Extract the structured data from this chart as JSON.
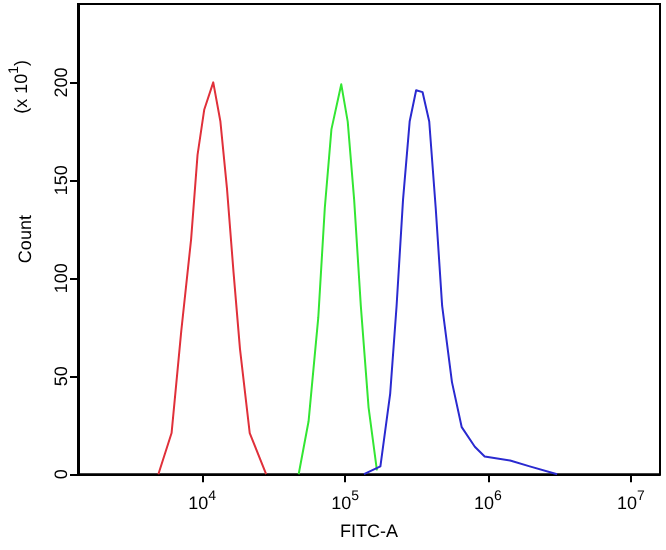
{
  "chart_data": {
    "type": "line",
    "xlabel": "FITC-A",
    "ylabel": "Count",
    "annotations": [
      "(x 10$^{1}$)"
    ],
    "log": "x",
    "grid": false,
    "marker": "none",
    "line_style": "solid",
    "xlim": [
      1350,
      16000000
    ],
    "xticks": [
      {
        "value": 10000,
        "label": "10$^{4}$"
      },
      {
        "value": 100000,
        "label": "10$^{5}$"
      },
      {
        "value": 1000000,
        "label": "10$^{6}$"
      },
      {
        "value": 10000000,
        "label": "10$^{7}$"
      }
    ],
    "ylim": [
      0,
      240
    ],
    "yticks": [
      0,
      50,
      100,
      150,
      200
    ],
    "series": [
      {
        "color": "#e0303a",
        "x": [
          4930,
          6100,
          7130,
          8360,
          9270,
          10320,
          11940,
          13400,
          14890,
          16560,
          18370,
          21500,
          28000
        ],
        "values": [
          0,
          21,
          73,
          120,
          163,
          186,
          200,
          180,
          146,
          103,
          64,
          21,
          0
        ]
      },
      {
        "color": "#33e633",
        "x": [
          47300,
          55500,
          64900,
          72100,
          80200,
          94000,
          104300,
          115700,
          128800,
          146000,
          167000
        ],
        "values": [
          0,
          27,
          80,
          136,
          176,
          199,
          180,
          140,
          86,
          34,
          2
        ]
      },
      {
        "color": "#2a2ad0",
        "x": [
          135500,
          176600,
          206700,
          229300,
          254300,
          283000,
          314200,
          348600,
          388000,
          430600,
          477600,
          559600,
          655000,
          809000,
          948000,
          1429000,
          1960000,
          3050000
        ],
        "values": [
          0,
          4,
          41,
          86,
          140,
          180,
          196,
          195,
          180,
          136,
          86,
          47,
          24,
          14,
          9,
          7,
          4,
          0
        ]
      }
    ]
  }
}
